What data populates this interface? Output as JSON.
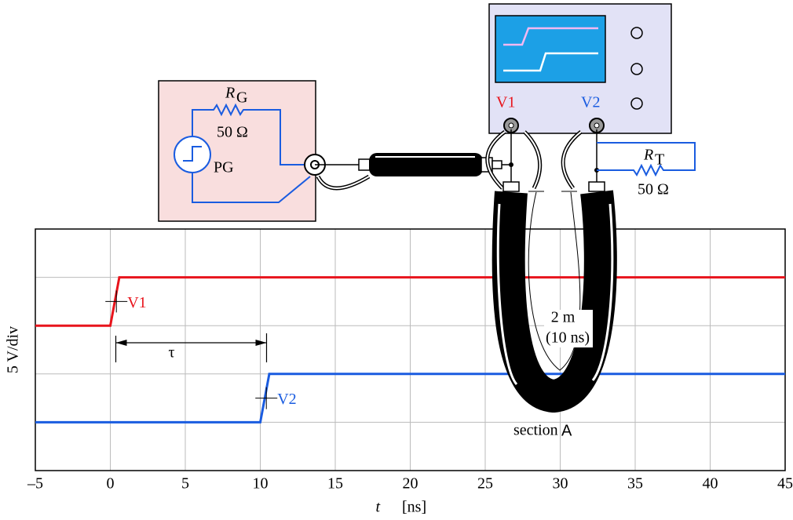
{
  "chart_data": {
    "type": "line",
    "ylabel": "5 V/div",
    "xlabel_var": "t",
    "xlabel_unit": "[ns]",
    "xlim": [
      -5,
      45
    ],
    "xticks": [
      {
        "value": -5,
        "label": "–5"
      },
      0,
      5,
      10,
      15,
      20,
      25,
      30,
      35,
      40,
      45
    ],
    "ylim": [
      0,
      5
    ],
    "yticks": [
      0,
      1,
      2,
      3,
      4,
      5
    ],
    "grid": true,
    "series": [
      {
        "name": "V1",
        "color": "#e8141c",
        "x": [
          -5,
          0,
          0.6,
          45
        ],
        "values": [
          3,
          3,
          4,
          4
        ]
      },
      {
        "name": "V2",
        "color": "#1a5ce0",
        "x": [
          -5,
          10,
          10.6,
          45
        ],
        "values": [
          1,
          1,
          2,
          2
        ]
      }
    ],
    "annotations": {
      "tau": "τ",
      "length": "2 m",
      "delay": "(10 ns)",
      "section": "section",
      "section_letter": "A"
    }
  },
  "diagram": {
    "rg_symbol": "R",
    "rg_sub": "G",
    "rg_value": "50 Ω",
    "generator": "PG",
    "scope_v1": "V1",
    "scope_v2": "V2",
    "rt_symbol": "R",
    "rt_sub": "T",
    "rt_value": "50 Ω"
  }
}
